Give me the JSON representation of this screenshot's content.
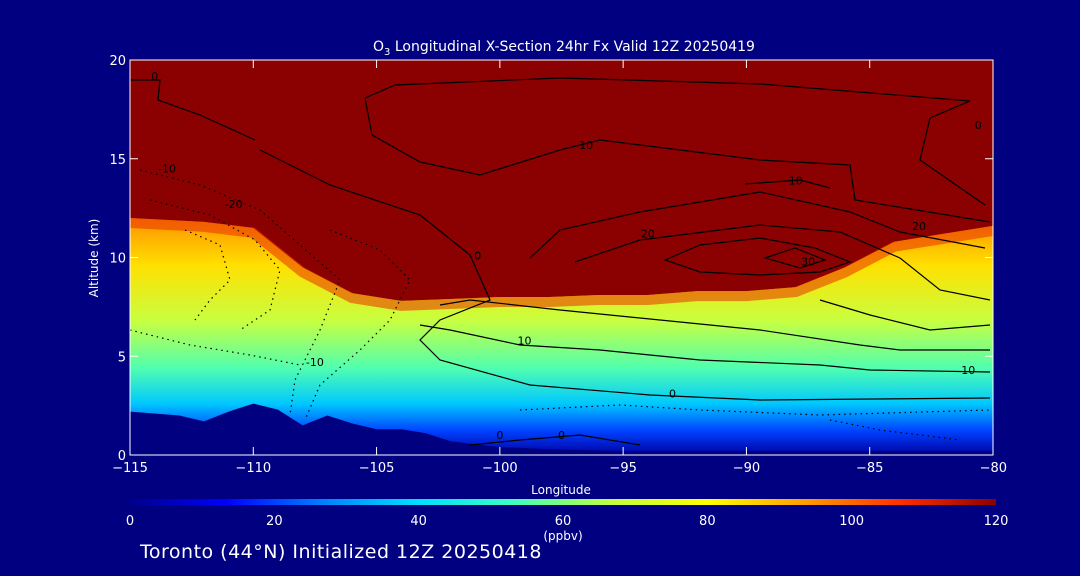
{
  "chart_data": {
    "type": "heatmap",
    "title_prefix": "O",
    "title_sub": "3",
    "title_rest": " Longitudinal X-Section 24hr  Fx Valid 12Z 20250419",
    "xlabel": "Longitude",
    "ylabel": "Altitude (km)",
    "xlim": [
      -115,
      -80
    ],
    "ylim": [
      0,
      20
    ],
    "x_ticks": [
      -115,
      -110,
      -105,
      -100,
      -95,
      -90,
      -85,
      -80
    ],
    "y_ticks": [
      0,
      5,
      10,
      15,
      20
    ],
    "colorbar": {
      "min": 0,
      "max": 120,
      "ticks": [
        0,
        20,
        40,
        60,
        80,
        100,
        120
      ],
      "unit": "(ppbv)",
      "colors": [
        "#00008b",
        "#0000ff",
        "#0080ff",
        "#00e0ff",
        "#40ffc0",
        "#c0ff40",
        "#ffff00",
        "#ffa000",
        "#ff3000",
        "#8b0000"
      ]
    },
    "tropopause_altitude_km": {
      "lon": [
        -115,
        -112,
        -110,
        -108,
        -106,
        -104,
        -102,
        -100,
        -98,
        -96,
        -94,
        -92,
        -90,
        -88,
        -86,
        -84,
        -82,
        -80
      ],
      "alt": [
        12.0,
        11.8,
        11.5,
        9.5,
        8.2,
        7.8,
        7.9,
        8.0,
        8.0,
        8.1,
        8.1,
        8.3,
        8.3,
        8.5,
        9.5,
        10.8,
        11.2,
        11.6
      ]
    },
    "terrain_altitude_km": {
      "lon": [
        -115,
        -113,
        -112,
        -111,
        -110,
        -109,
        -108,
        -107,
        -106,
        -105,
        -104,
        -103,
        -102,
        -100,
        -98,
        -95,
        -90,
        -85,
        -80
      ],
      "alt": [
        2.2,
        2.0,
        1.7,
        2.2,
        2.6,
        2.3,
        1.5,
        2.0,
        1.6,
        1.3,
        1.3,
        1.1,
        0.7,
        0.4,
        0.3,
        0.2,
        0.2,
        0.2,
        0.2
      ]
    },
    "contour_labels": [
      {
        "text": "0",
        "lon": -114.0,
        "alt": 19.0
      },
      {
        "text": "-10",
        "lon": -113.5,
        "alt": 14.3
      },
      {
        "text": "-20",
        "lon": -110.8,
        "alt": 12.5
      },
      {
        "text": "10",
        "lon": -96.5,
        "alt": 15.5
      },
      {
        "text": "10",
        "lon": -88.0,
        "alt": 13.7
      },
      {
        "text": "0",
        "lon": -100.9,
        "alt": 9.9
      },
      {
        "text": "20",
        "lon": -94.0,
        "alt": 11.0
      },
      {
        "text": "30",
        "lon": -87.5,
        "alt": 9.6
      },
      {
        "text": "20",
        "lon": -83.0,
        "alt": 11.4
      },
      {
        "text": "10",
        "lon": -99.0,
        "alt": 5.6
      },
      {
        "text": "-10",
        "lon": -107.5,
        "alt": 4.5
      },
      {
        "text": "0",
        "lon": -93.0,
        "alt": 2.9
      },
      {
        "text": "10",
        "lon": -81.0,
        "alt": 4.1
      },
      {
        "text": "0",
        "lon": -100.0,
        "alt": 0.8
      },
      {
        "text": "0",
        "lon": -97.5,
        "alt": 0.8
      },
      {
        "text": "0",
        "lon": -80.6,
        "alt": 16.5
      }
    ]
  },
  "footer": "Toronto (44°N) Initialized 12Z 20250418"
}
